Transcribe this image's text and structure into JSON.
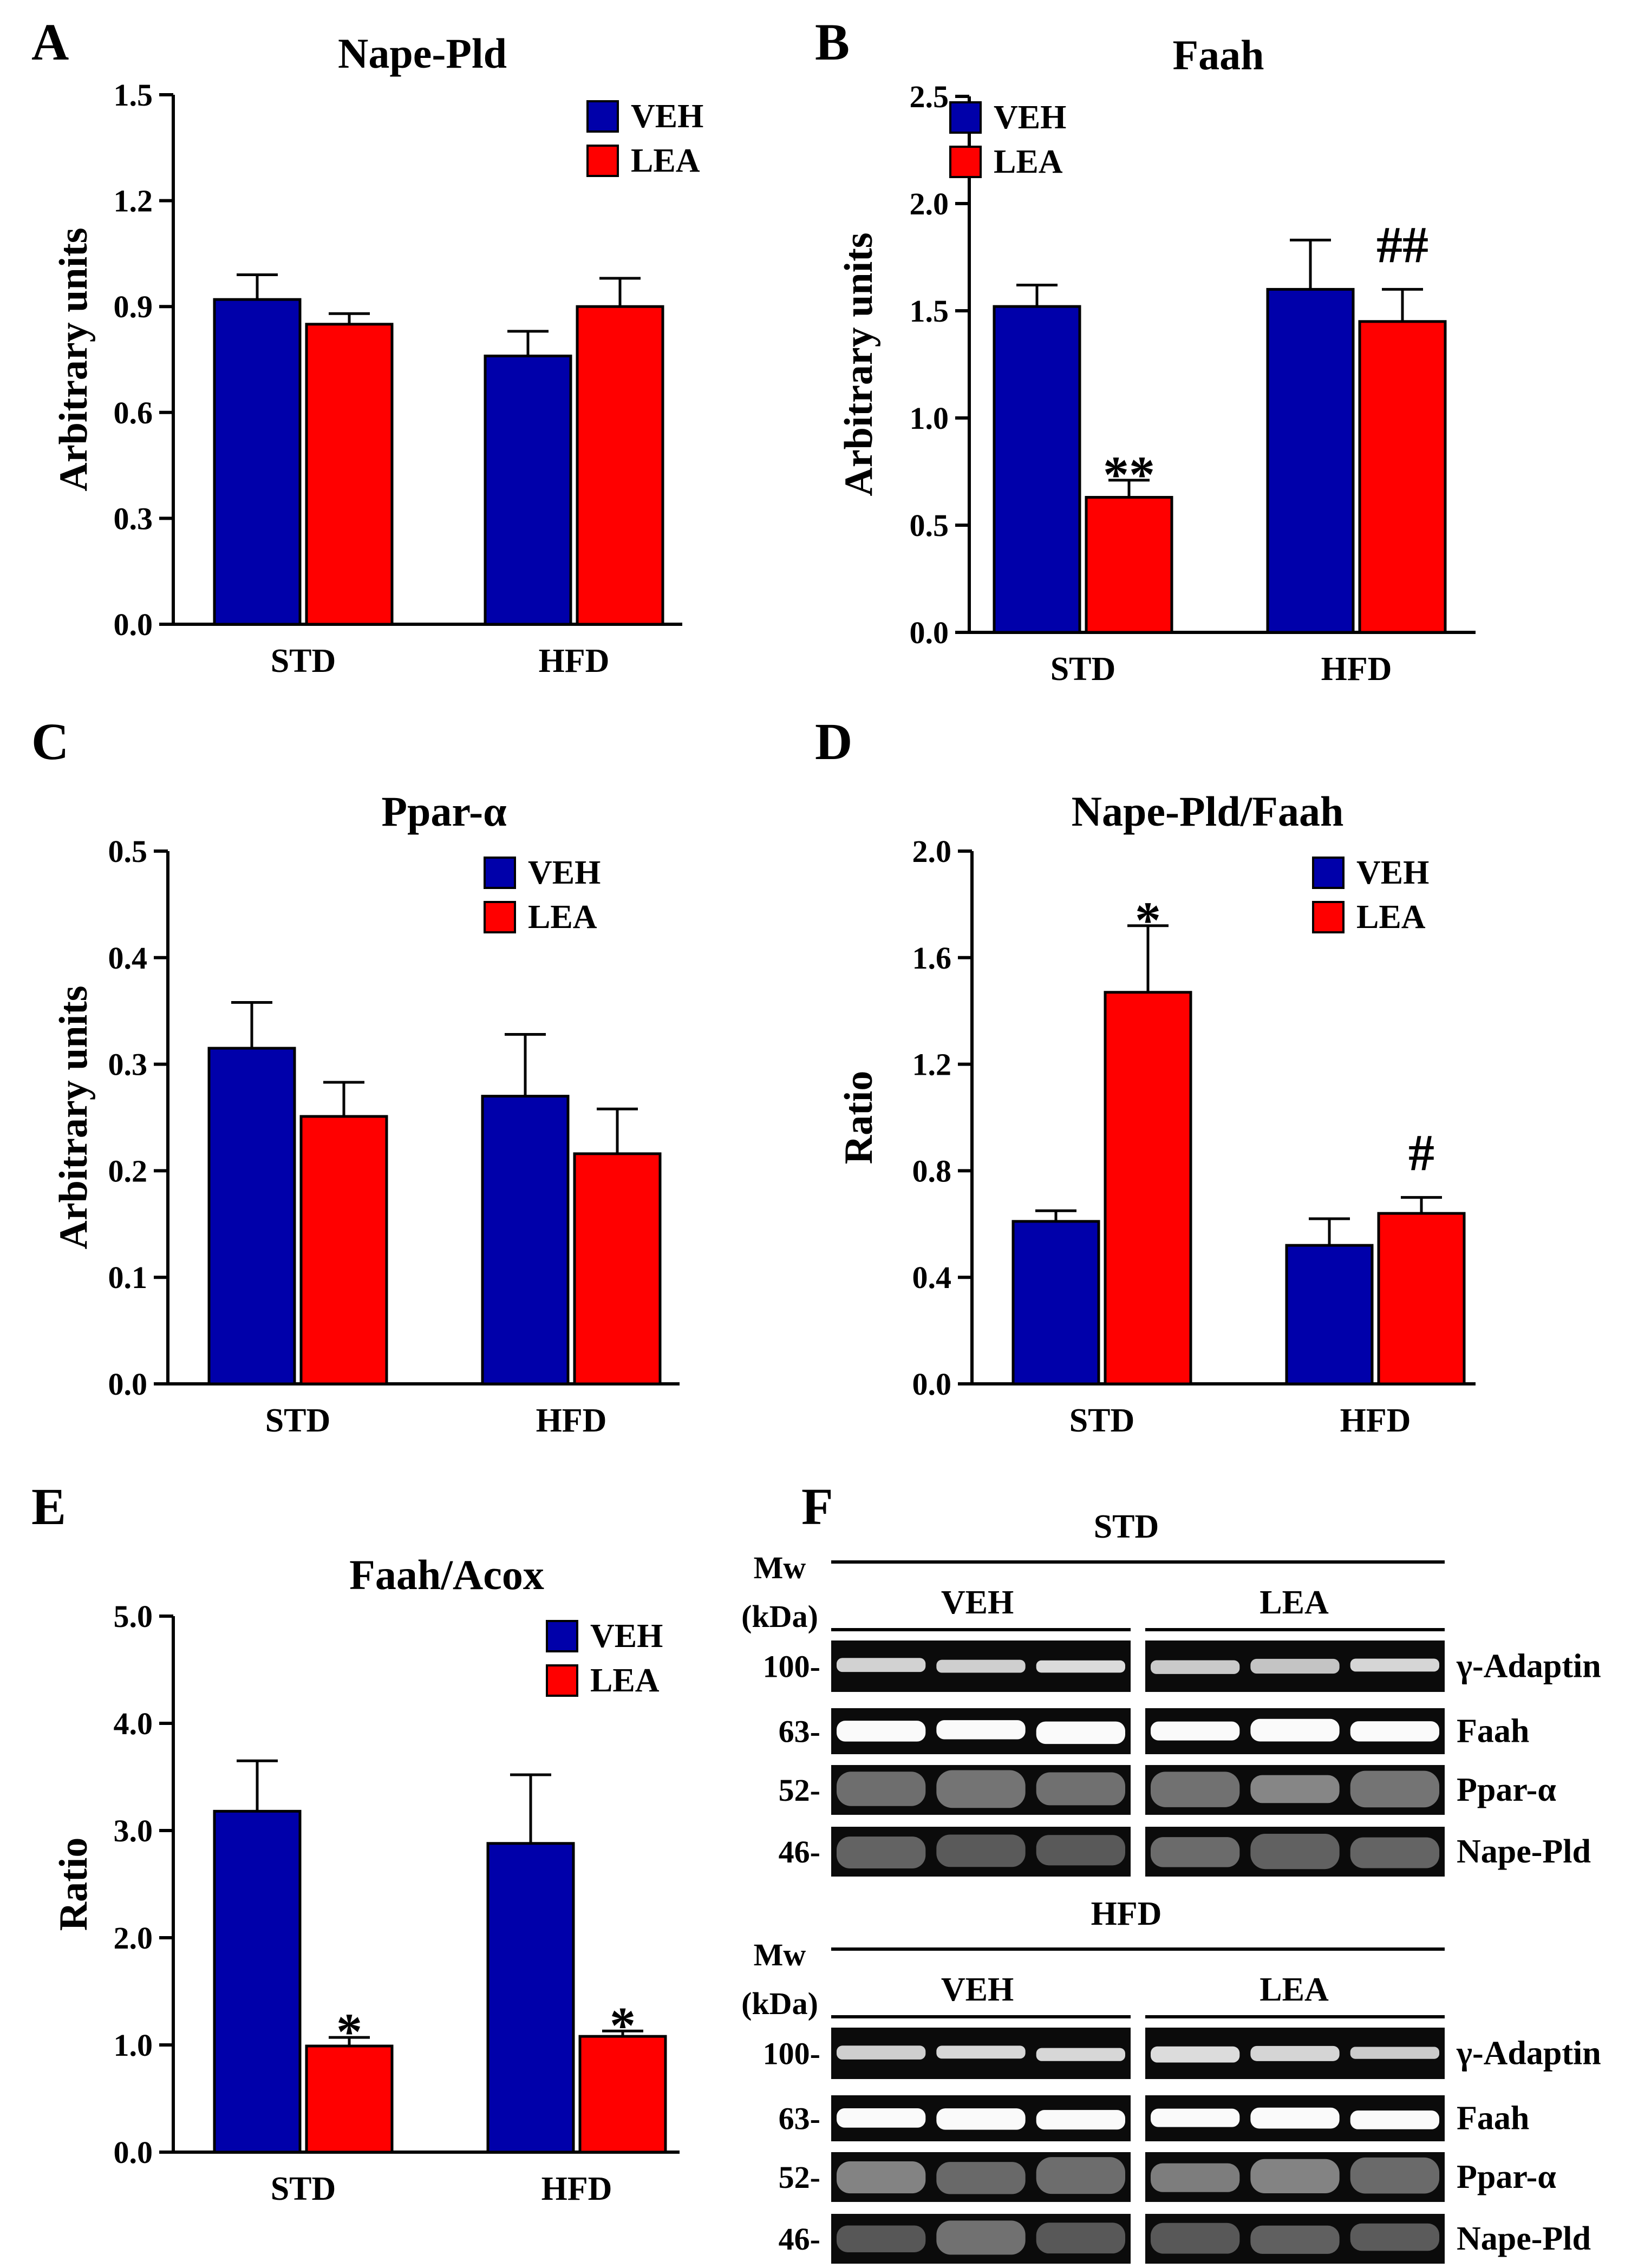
{
  "colors": {
    "veh": "#0000AA",
    "lea": "#FF0000",
    "axis": "#000000"
  },
  "chart_data": [
    {
      "id": "A",
      "type": "bar",
      "letter": "A",
      "title": "Nape-Pld",
      "ylabel": "Arbitrary units",
      "ylim": [
        0,
        1.5
      ],
      "yticks": [
        "0.0",
        "0.3",
        "0.6",
        "0.9",
        "1.2",
        "1.5"
      ],
      "categories": [
        "STD",
        "HFD"
      ],
      "series": [
        {
          "name": "VEH",
          "values": [
            0.92,
            0.76
          ],
          "errors": [
            0.07,
            0.07
          ]
        },
        {
          "name": "LEA",
          "values": [
            0.85,
            0.9
          ],
          "errors": [
            0.03,
            0.08
          ]
        }
      ],
      "annotations": [],
      "legend": "top-right"
    },
    {
      "id": "B",
      "type": "bar",
      "letter": "B",
      "title": "Faah",
      "ylabel": "Arbitrary units",
      "ylim": [
        0,
        2.5
      ],
      "yticks": [
        "0.0",
        "0.5",
        "1.0",
        "1.5",
        "2.0",
        "2.5"
      ],
      "categories": [
        "STD",
        "HFD"
      ],
      "series": [
        {
          "name": "VEH",
          "values": [
            1.52,
            1.6
          ],
          "errors": [
            0.1,
            0.23
          ]
        },
        {
          "name": "LEA",
          "values": [
            0.63,
            1.45
          ],
          "errors": [
            0.08,
            0.15
          ]
        }
      ],
      "annotations": [
        {
          "text": "**",
          "series": 1,
          "category": 0
        },
        {
          "text": "##",
          "series": 1,
          "category": 1
        }
      ],
      "legend": "top-left"
    },
    {
      "id": "C",
      "type": "bar",
      "letter": "C",
      "title": "Ppar-α",
      "ylabel": "Arbitrary units",
      "ylim": [
        0,
        0.5
      ],
      "yticks": [
        "0.0",
        "0.1",
        "0.2",
        "0.3",
        "0.4",
        "0.5"
      ],
      "categories": [
        "STD",
        "HFD"
      ],
      "series": [
        {
          "name": "VEH",
          "values": [
            0.315,
            0.27
          ],
          "errors": [
            0.043,
            0.058
          ]
        },
        {
          "name": "LEA",
          "values": [
            0.251,
            0.216
          ],
          "errors": [
            0.032,
            0.042
          ]
        }
      ],
      "annotations": [],
      "legend": "top-right"
    },
    {
      "id": "D",
      "type": "bar",
      "letter": "D",
      "title": "Nape-Pld/Faah",
      "ylabel": "Ratio",
      "ylim": [
        0,
        2.0
      ],
      "yticks": [
        "0.0",
        "0.4",
        "0.8",
        "1.2",
        "1.6",
        "2.0"
      ],
      "categories": [
        "STD",
        "HFD"
      ],
      "series": [
        {
          "name": "VEH",
          "values": [
            0.61,
            0.52
          ],
          "errors": [
            0.04,
            0.1
          ]
        },
        {
          "name": "LEA",
          "values": [
            1.47,
            0.64
          ],
          "errors": [
            0.25,
            0.06
          ]
        }
      ],
      "annotations": [
        {
          "text": "*",
          "series": 1,
          "category": 0
        },
        {
          "text": "#",
          "series": 1,
          "category": 1
        }
      ],
      "legend": "top-right"
    },
    {
      "id": "E",
      "type": "bar",
      "letter": "E",
      "title": "Faah/Acox",
      "ylabel": "Ratio",
      "ylim": [
        0,
        5.0
      ],
      "yticks": [
        "0.0",
        "1.0",
        "2.0",
        "3.0",
        "4.0",
        "5.0"
      ],
      "categories": [
        "STD",
        "HFD"
      ],
      "series": [
        {
          "name": "VEH",
          "values": [
            3.18,
            2.88
          ],
          "errors": [
            0.47,
            0.64
          ]
        },
        {
          "name": "LEA",
          "values": [
            0.99,
            1.08
          ],
          "errors": [
            0.08,
            0.05
          ]
        }
      ],
      "annotations": [
        {
          "text": "*",
          "series": 1,
          "category": 0
        },
        {
          "text": "*",
          "series": 1,
          "category": 1
        }
      ],
      "legend": "top-right"
    }
  ],
  "blot": {
    "letter": "F",
    "mw_label": "Mw",
    "kda_label": "(kDa)",
    "groups": [
      {
        "condition": "STD",
        "veh": "VEH",
        "lea": "LEA",
        "rows": [
          {
            "mw": "100-",
            "protein": "γ-Adaptin"
          },
          {
            "mw": "63-",
            "protein": "Faah"
          },
          {
            "mw": "52-",
            "protein": "Ppar-α"
          },
          {
            "mw": "46-",
            "protein": "Nape-Pld"
          }
        ]
      },
      {
        "condition": "HFD",
        "veh": "VEH",
        "lea": "LEA",
        "rows": [
          {
            "mw": "100-",
            "protein": "γ-Adaptin"
          },
          {
            "mw": "63-",
            "protein": "Faah"
          },
          {
            "mw": "52-",
            "protein": "Ppar-α"
          },
          {
            "mw": "46-",
            "protein": "Nape-Pld"
          }
        ]
      }
    ]
  }
}
